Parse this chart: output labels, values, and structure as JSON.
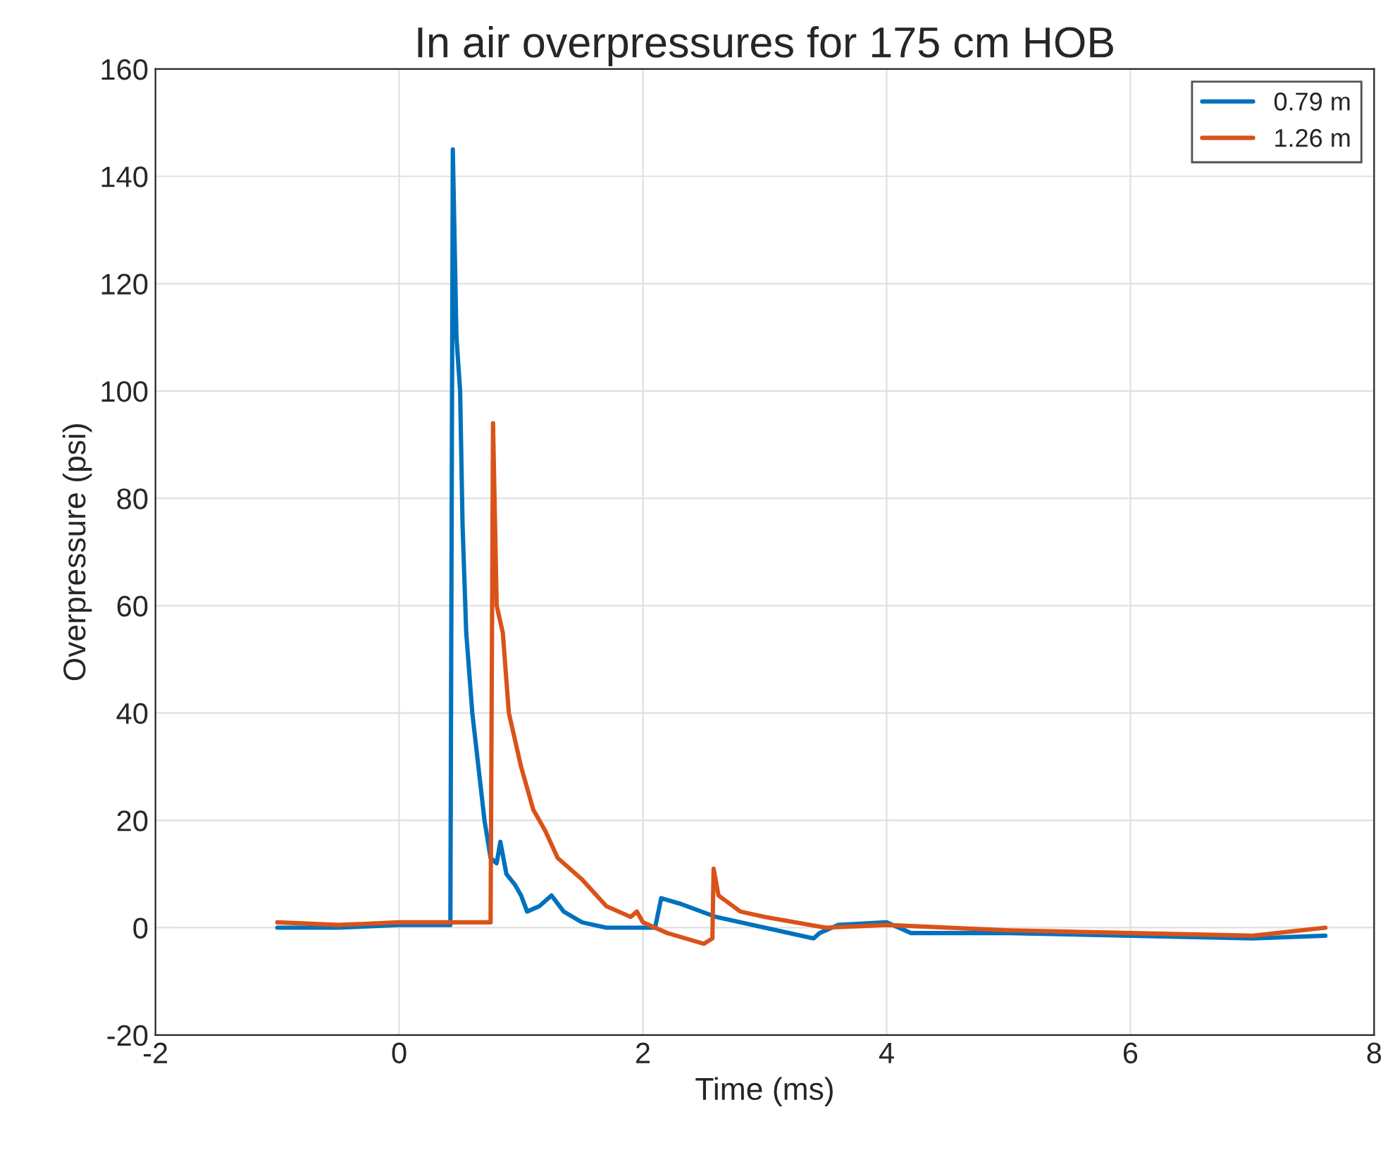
{
  "chart_data": {
    "type": "line",
    "title": "In air overpressures for 175 cm HOB",
    "xlabel": "Time (ms)",
    "ylabel": "Overpressure (psi)",
    "xlim": [
      -2,
      8
    ],
    "xticks": [
      -2,
      0,
      2,
      4,
      6,
      8
    ],
    "ylim": [
      -20,
      160
    ],
    "yticks": [
      -20,
      0,
      20,
      40,
      60,
      80,
      100,
      120,
      140,
      160
    ],
    "grid": true,
    "legend": "top right",
    "series": [
      {
        "name": "0.79 m",
        "color": "#0072bd",
        "x": [
          -1.0,
          -0.5,
          0.0,
          0.4,
          0.42,
          0.44,
          0.47,
          0.5,
          0.52,
          0.55,
          0.6,
          0.65,
          0.7,
          0.75,
          0.8,
          0.83,
          0.88,
          0.95,
          1.0,
          1.05,
          1.15,
          1.25,
          1.35,
          1.5,
          1.7,
          1.9,
          2.1,
          2.15,
          2.3,
          2.6,
          3.0,
          3.4,
          3.45,
          3.6,
          4.0,
          4.2,
          5.0,
          6.0,
          7.0,
          7.6
        ],
        "values": [
          0,
          0,
          0.5,
          0.5,
          0.5,
          145,
          110,
          100,
          75,
          55,
          40,
          30,
          20,
          13,
          12,
          16,
          10,
          8,
          6,
          3,
          4,
          6,
          3,
          1,
          0,
          0,
          0,
          5.5,
          4.5,
          2,
          0,
          -2,
          -1,
          0.5,
          1,
          -1,
          -1,
          -1.5,
          -2,
          -1.5
        ]
      },
      {
        "name": "1.26 m",
        "color": "#d95319",
        "x": [
          -1.0,
          -0.5,
          0.0,
          0.5,
          0.75,
          0.77,
          0.8,
          0.85,
          0.9,
          1.0,
          1.1,
          1.2,
          1.3,
          1.5,
          1.7,
          1.9,
          1.95,
          2.0,
          2.2,
          2.5,
          2.57,
          2.58,
          2.62,
          2.8,
          3.0,
          3.5,
          4.0,
          5.0,
          6.0,
          7.0,
          7.6
        ],
        "values": [
          1,
          0.5,
          1,
          1,
          1,
          94,
          60,
          55,
          40,
          30,
          22,
          18,
          13,
          9,
          4,
          2,
          3,
          1,
          -1,
          -3,
          -2,
          11,
          6,
          3,
          2,
          0,
          0.5,
          -0.5,
          -1,
          -1.5,
          0
        ]
      }
    ]
  }
}
